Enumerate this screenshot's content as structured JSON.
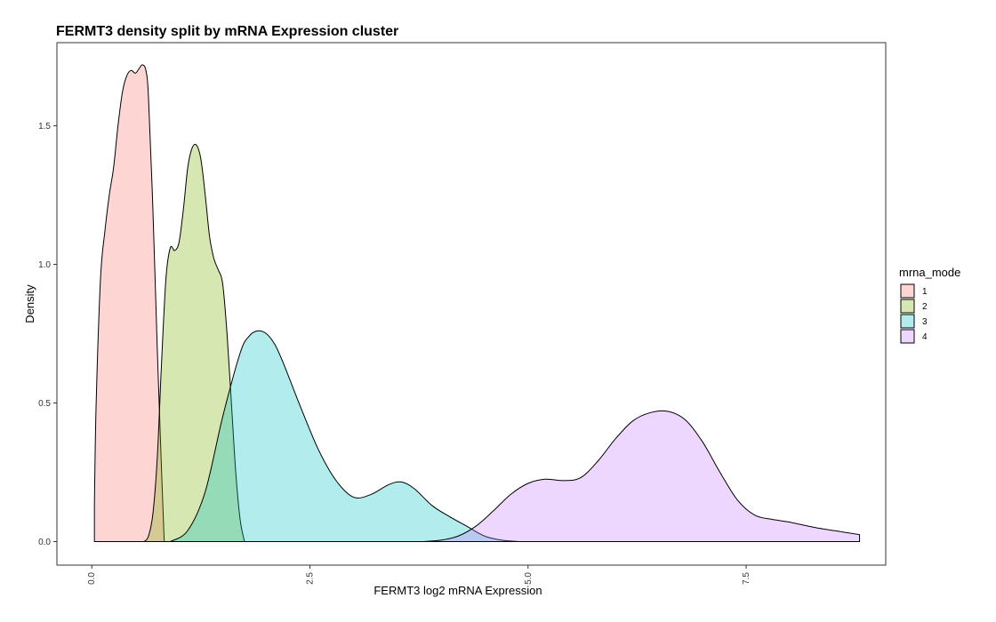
{
  "chart_data": {
    "type": "area",
    "title": "FERMT3 density split by mRNA Expression cluster",
    "xlabel": "FERMT3 log2 mRNA Expression",
    "ylabel": "Density",
    "xlim": [
      -0.4,
      9.1
    ],
    "ylim": [
      -0.085,
      1.8
    ],
    "x_ticks": [
      0.0,
      2.5,
      5.0,
      7.5
    ],
    "x_tick_labels": [
      "0.0",
      "2.5",
      "5.0",
      "7.5"
    ],
    "y_ticks": [
      0.0,
      0.5,
      1.0,
      1.5
    ],
    "y_tick_labels": [
      "0.0",
      "0.5",
      "1.0",
      "1.5"
    ],
    "grid": false,
    "legend": {
      "title": "mrna_mode",
      "position": "right"
    },
    "series": [
      {
        "name": "1",
        "color": "#F8766D",
        "x": [
          0.03,
          0.05,
          0.1,
          0.15,
          0.2,
          0.25,
          0.3,
          0.35,
          0.4,
          0.45,
          0.5,
          0.55,
          0.58,
          0.62,
          0.65,
          0.7,
          0.75,
          0.8,
          0.83
        ],
        "y": [
          0.14,
          0.5,
          0.95,
          1.12,
          1.25,
          1.35,
          1.5,
          1.62,
          1.68,
          1.7,
          1.69,
          1.71,
          1.72,
          1.7,
          1.6,
          1.2,
          0.7,
          0.25,
          0.0
        ]
      },
      {
        "name": "2",
        "color": "#7CAE00",
        "x": [
          0.6,
          0.65,
          0.7,
          0.75,
          0.8,
          0.85,
          0.9,
          0.95,
          1.0,
          1.05,
          1.1,
          1.15,
          1.2,
          1.25,
          1.3,
          1.35,
          1.4,
          1.45,
          1.5,
          1.55,
          1.6,
          1.65,
          1.7,
          1.75
        ],
        "y": [
          0.0,
          0.02,
          0.1,
          0.3,
          0.65,
          0.95,
          1.06,
          1.05,
          1.08,
          1.2,
          1.35,
          1.42,
          1.43,
          1.38,
          1.25,
          1.1,
          1.02,
          0.98,
          0.93,
          0.75,
          0.5,
          0.25,
          0.08,
          0.0
        ]
      },
      {
        "name": "3",
        "color": "#00BFC4",
        "x": [
          0.9,
          1.1,
          1.3,
          1.5,
          1.7,
          1.8,
          1.9,
          2.0,
          2.1,
          2.2,
          2.4,
          2.6,
          2.8,
          3.0,
          3.2,
          3.4,
          3.55,
          3.7,
          3.9,
          4.1,
          4.3,
          4.5,
          4.7,
          4.9
        ],
        "y": [
          0.0,
          0.04,
          0.18,
          0.45,
          0.68,
          0.74,
          0.76,
          0.75,
          0.71,
          0.64,
          0.48,
          0.33,
          0.22,
          0.16,
          0.17,
          0.205,
          0.215,
          0.19,
          0.13,
          0.09,
          0.055,
          0.02,
          0.005,
          0.0
        ]
      },
      {
        "name": "4",
        "color": "#C77CFF",
        "x": [
          3.8,
          4.0,
          4.2,
          4.4,
          4.6,
          4.8,
          5.0,
          5.2,
          5.4,
          5.6,
          5.8,
          6.0,
          6.2,
          6.4,
          6.6,
          6.8,
          7.0,
          7.2,
          7.4,
          7.6,
          7.8,
          8.0,
          8.3,
          8.6,
          8.8
        ],
        "y": [
          0.0,
          0.005,
          0.02,
          0.055,
          0.11,
          0.17,
          0.21,
          0.225,
          0.22,
          0.23,
          0.29,
          0.37,
          0.435,
          0.465,
          0.47,
          0.44,
          0.36,
          0.25,
          0.15,
          0.095,
          0.08,
          0.07,
          0.05,
          0.035,
          0.025
        ]
      }
    ]
  }
}
